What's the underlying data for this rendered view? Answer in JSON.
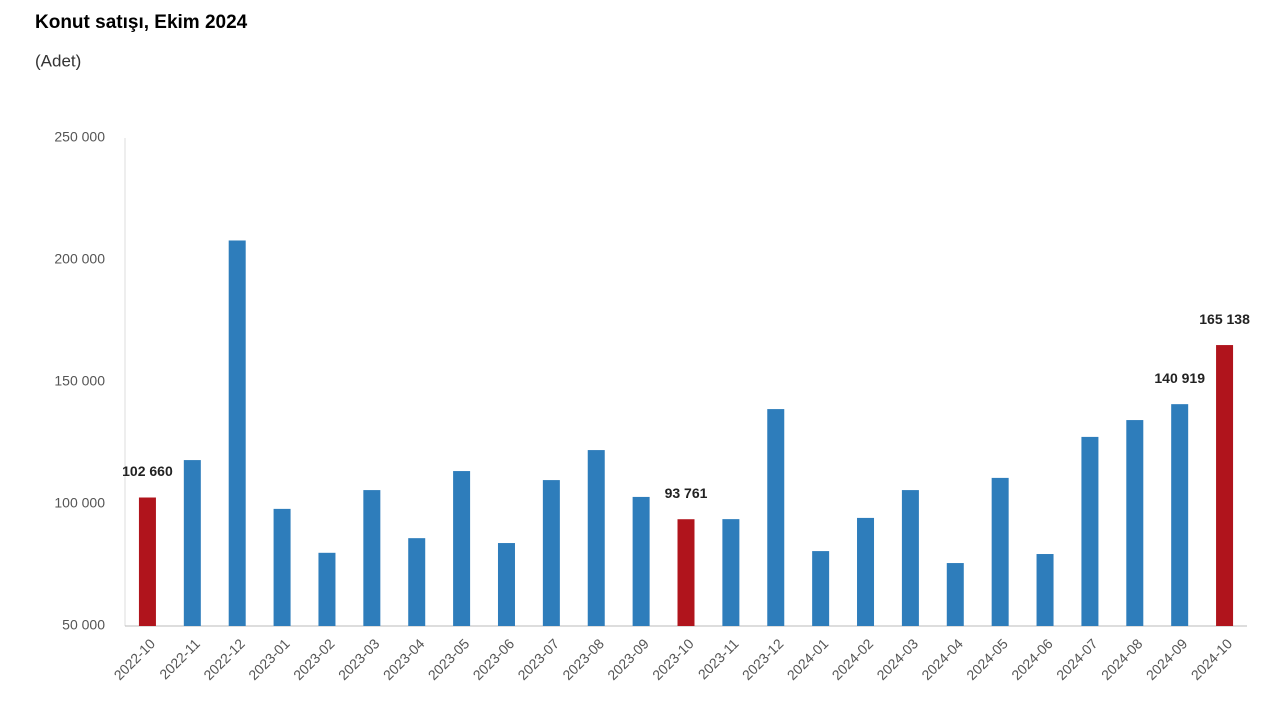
{
  "chart_data": {
    "type": "bar",
    "title": "Konut satışı, Ekim 2024",
    "subtitle": "(Adet)",
    "categories": [
      "2022-10",
      "2022-11",
      "2022-12",
      "2023-01",
      "2023-02",
      "2023-03",
      "2023-04",
      "2023-05",
      "2023-06",
      "2023-07",
      "2023-08",
      "2023-09",
      "2023-10",
      "2023-11",
      "2023-12",
      "2024-01",
      "2024-02",
      "2024-03",
      "2024-04",
      "2024-05",
      "2024-06",
      "2024-07",
      "2024-08",
      "2024-09",
      "2024-10"
    ],
    "values": [
      102660,
      118000,
      208000,
      98000,
      80000,
      105700,
      86000,
      113500,
      84000,
      109800,
      122100,
      102900,
      93761,
      93800,
      138900,
      80700,
      94300,
      105700,
      75800,
      110700,
      79500,
      127500,
      134400,
      140919,
      165138
    ],
    "value_labels": [
      "102 660",
      null,
      null,
      null,
      null,
      null,
      null,
      null,
      null,
      null,
      null,
      null,
      "93 761",
      null,
      null,
      null,
      null,
      null,
      null,
      null,
      null,
      null,
      null,
      "140 919",
      "165 138"
    ],
    "colors": [
      "#b0141c",
      "#2e7dbb",
      "#2e7dbb",
      "#2e7dbb",
      "#2e7dbb",
      "#2e7dbb",
      "#2e7dbb",
      "#2e7dbb",
      "#2e7dbb",
      "#2e7dbb",
      "#2e7dbb",
      "#2e7dbb",
      "#b0141c",
      "#2e7dbb",
      "#2e7dbb",
      "#2e7dbb",
      "#2e7dbb",
      "#2e7dbb",
      "#2e7dbb",
      "#2e7dbb",
      "#2e7dbb",
      "#2e7dbb",
      "#2e7dbb",
      "#2e7dbb",
      "#b0141c"
    ],
    "ylim": [
      50000,
      250000
    ],
    "yticks": [
      {
        "value": 50000,
        "label": "50 000"
      },
      {
        "value": 100000,
        "label": "100 000"
      },
      {
        "value": 150000,
        "label": "150 000"
      },
      {
        "value": 200000,
        "label": "200 000"
      },
      {
        "value": 250000,
        "label": "250 000"
      }
    ],
    "grid": false
  }
}
